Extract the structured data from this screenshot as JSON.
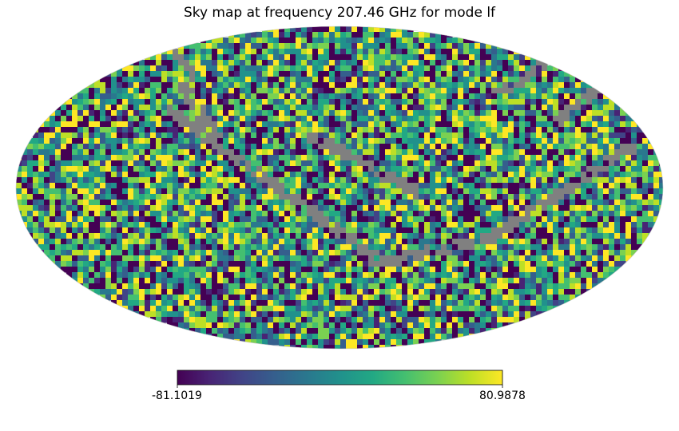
{
  "chart_data": {
    "type": "heatmap",
    "title": "Sky map at frequency 207.46 GHz for mode lf",
    "projection": "mollweide",
    "frequency_ghz": 207.46,
    "mode": "lf",
    "colormap": "viridis",
    "masked_color": "#808080",
    "colorbar": {
      "orientation": "horizontal",
      "min": -81.1019,
      "max": 80.9878,
      "min_label": "-81.1019",
      "max_label": "80.9878"
    }
  }
}
